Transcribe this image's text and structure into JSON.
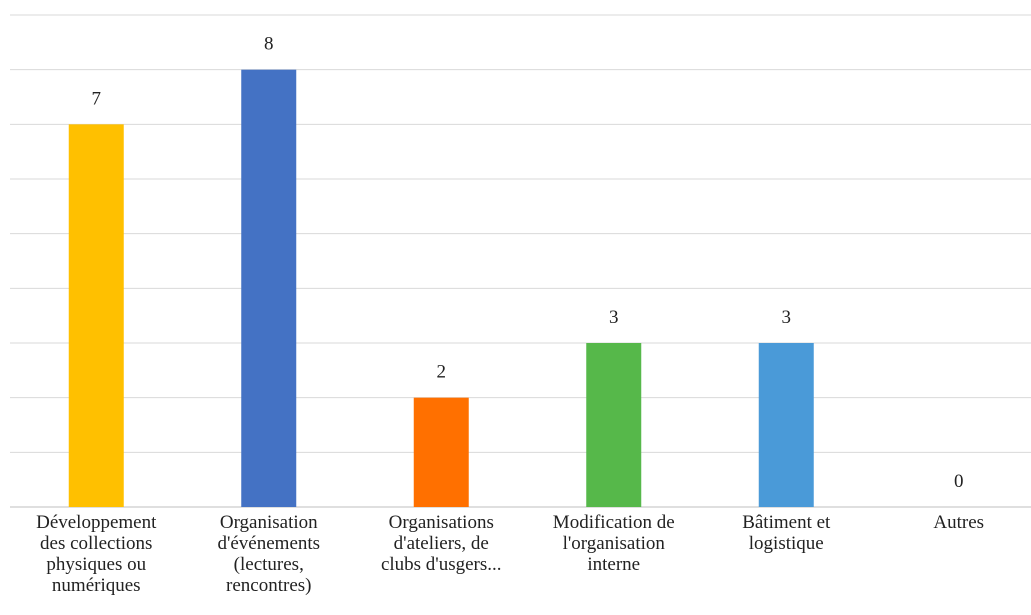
{
  "chart_data": {
    "type": "bar",
    "categories": [
      "Développement\ndes collections\nphysiques ou\nnumériques",
      "Organisation\nd'événements\n(lectures,\nrencontres)",
      "Organisations\nd'ateliers, de\nclubs d'usgers...",
      "Modification de\nl'organisation\ninterne",
      "Bâtiment et\nlogistique",
      "Autres"
    ],
    "values": [
      7,
      8,
      2,
      3,
      3,
      0
    ],
    "data_labels": [
      "7",
      "8",
      "2",
      "3",
      "3",
      "0"
    ],
    "colors": [
      "#FFC000",
      "#4472C4",
      "#FF7000",
      "#56B84A",
      "#4A9AD8",
      "#A0A0A0"
    ],
    "ylim": [
      0,
      9
    ],
    "grid": true,
    "gridline_color": "#D9D9D9"
  }
}
